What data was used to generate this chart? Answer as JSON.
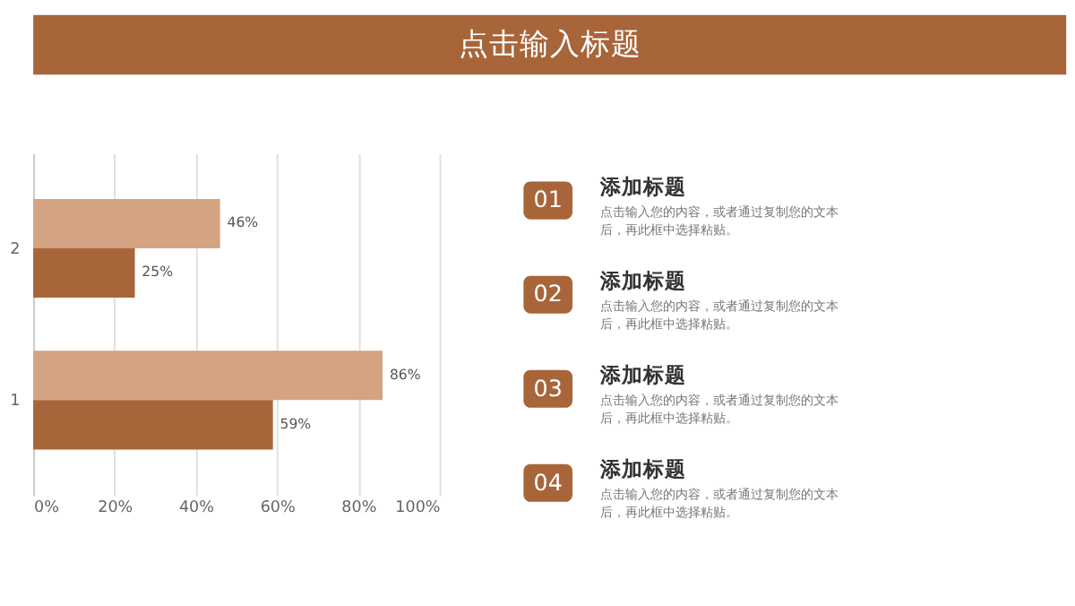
{
  "chart_data": {
    "type": "bar",
    "title": "点击输入标题",
    "orientation": "horizontal",
    "categories": [
      "2",
      "1"
    ],
    "series": [
      {
        "color": "#d4a382",
        "values": [
          46,
          86
        ],
        "value_labels": [
          "46%",
          "86%"
        ]
      },
      {
        "color": "#a8653a",
        "values": [
          25,
          59
        ],
        "value_labels": [
          "25%",
          "59%"
        ]
      }
    ],
    "xlim": [
      0,
      100
    ],
    "xticks": [
      {
        "value": 0,
        "label": "0%"
      },
      {
        "value": 20,
        "label": "20%"
      },
      {
        "value": 40,
        "label": "40%"
      },
      {
        "value": 60,
        "label": "60%"
      },
      {
        "value": 80,
        "label": "80%"
      },
      {
        "value": 100,
        "label": "100%"
      }
    ],
    "grid": "x",
    "annotations": [
      "01",
      "添加标题",
      "点击输入您的内容，或者通过复制您的文本后，再此框中选择粘贴。",
      "02",
      "添加标题",
      "点击输入您的内容，或者通过复制您的文本后，再此框中选择粘贴。",
      "03",
      "添加标题",
      "点击输入您的内容，或者通过复制您的文本后，再此框中选择粘贴。",
      "04",
      "添加标题",
      "点击输入您的内容，或者通过复制您的文本后，再此框中选择粘贴。"
    ]
  }
}
